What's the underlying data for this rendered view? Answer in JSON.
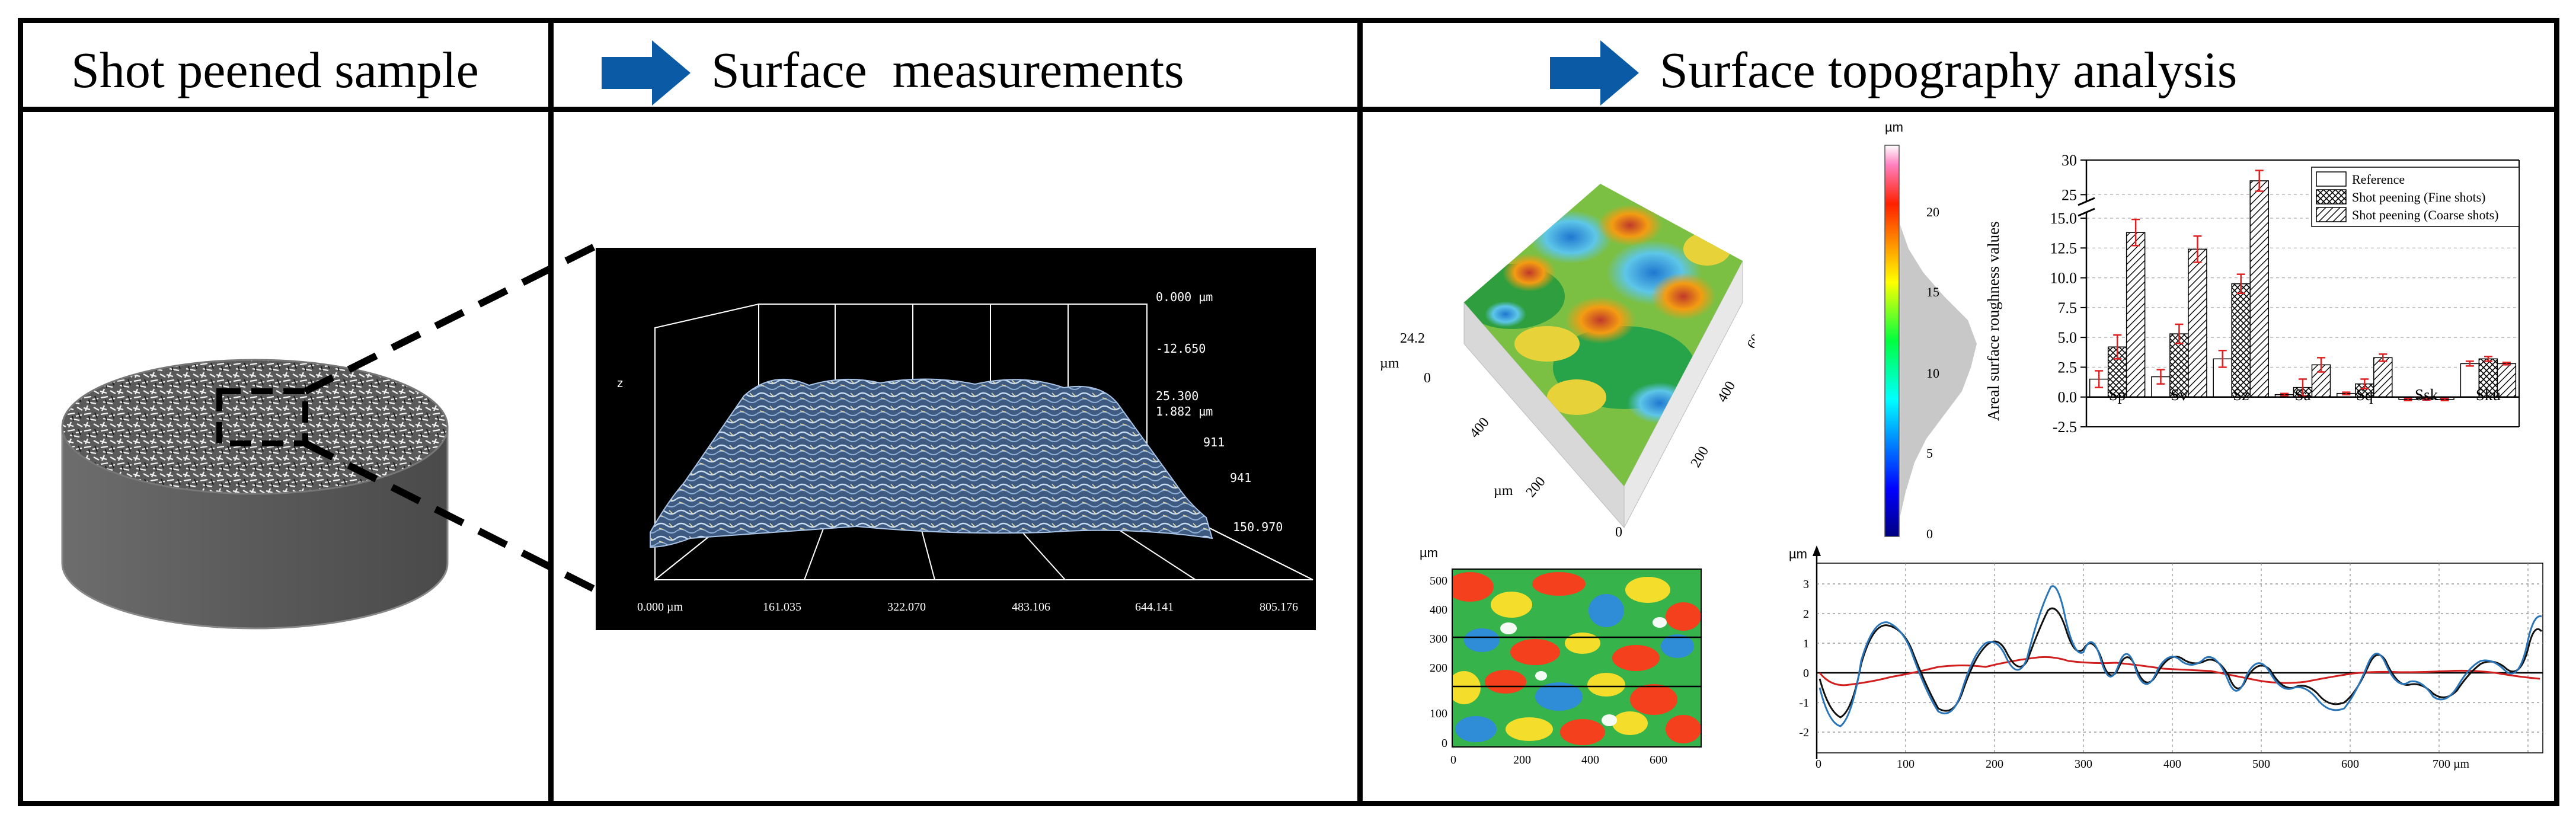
{
  "headers": {
    "panel1": "Shot peened sample",
    "panel2": "Surface  measurements",
    "panel3": "Surface topography analysis"
  },
  "colors": {
    "arrow": "#0b5aa6",
    "border": "#000000",
    "measure_bg": "#000000",
    "ref_bar": "#ffffff"
  },
  "icons": {
    "header_arrow": "right-arrow-icon"
  },
  "measurement": {
    "z_labels": [
      "0.000 µm",
      "-12.650",
      "25.300",
      "1.882 µm",
      "911",
      "941"
    ],
    "x_ticks": [
      "0.000 µm",
      "161.035",
      "322.070",
      "483.106",
      "644.141",
      "805.176"
    ],
    "side_label": "150.970",
    "axis_z": "z"
  },
  "surface3d": {
    "z_label": "24.2",
    "z_zero": "0",
    "unit": "µm",
    "x_ticks": [
      "200",
      "400"
    ],
    "y_ticks": [
      "200",
      "400",
      "600"
    ],
    "origin": "0",
    "unit_x": "µm",
    "unit_y": "µm"
  },
  "colorbar": {
    "unit": "µm",
    "ticks": [
      "20",
      "15",
      "10",
      "5",
      "0"
    ]
  },
  "heatmap": {
    "unit": "µm",
    "y_ticks": [
      "500",
      "400",
      "300",
      "200",
      "100",
      "0"
    ],
    "x_ticks": [
      "0",
      "200",
      "400",
      "600"
    ]
  },
  "profile": {
    "unit": "µm",
    "y_ticks": [
      "3",
      "2",
      "1",
      "0",
      "-1",
      "-2"
    ],
    "x_ticks": [
      "0",
      "100",
      "200",
      "300",
      "400",
      "500",
      "600",
      "700 µm"
    ]
  },
  "chart_data": {
    "type": "bar",
    "ylabel": "Areal surface roughness values",
    "categories": [
      "Sp",
      "Sv",
      "Sz",
      "Sa",
      "Sq",
      "Ssk",
      "Sku"
    ],
    "y_ticks": [
      "30",
      "25",
      "15.0",
      "12.5",
      "10.0",
      "7.5",
      "5.0",
      "2.5",
      "0.0",
      "-2.5"
    ],
    "ylim": [
      -2.5,
      30
    ],
    "axis_break": [
      15.5,
      24
    ],
    "legend_position": "top-right",
    "grid": true,
    "series": [
      {
        "name": "Reference",
        "values": [
          1.5,
          1.7,
          3.2,
          0.2,
          0.3,
          -0.2,
          2.8
        ],
        "errors": [
          0.7,
          0.6,
          0.7,
          0.1,
          0.1,
          0.1,
          0.2
        ]
      },
      {
        "name": "Shot peening (Fine shots)",
        "values": [
          4.2,
          5.3,
          9.5,
          0.8,
          1.1,
          -0.15,
          3.2
        ],
        "errors": [
          1.0,
          0.8,
          0.8,
          0.7,
          0.4,
          0.1,
          0.2
        ]
      },
      {
        "name": "Shot peening (Coarse shots)",
        "values": [
          13.8,
          12.4,
          27,
          2.7,
          3.3,
          -0.2,
          2.8
        ],
        "errors": [
          1.1,
          1.1,
          1.5,
          0.6,
          0.3,
          0.1,
          0.1
        ]
      }
    ]
  }
}
